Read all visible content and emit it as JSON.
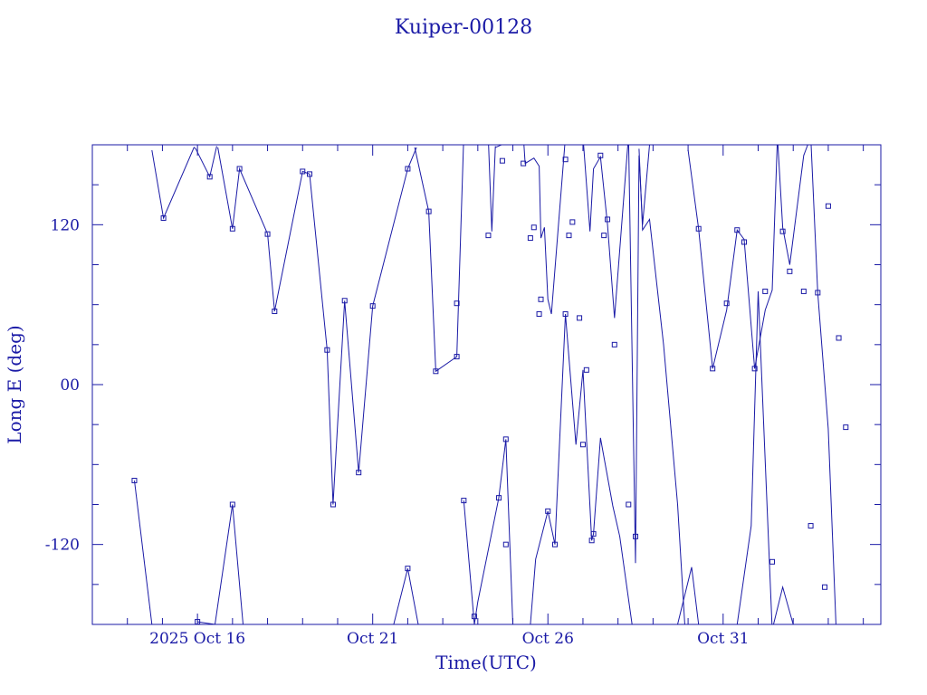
{
  "chart_data": {
    "type": "line",
    "title": "Kuiper-00128",
    "xlabel": "Time(UTC)",
    "ylabel": "Long E (deg)",
    "xlim": [
      -3.0,
      19.5
    ],
    "ylim": [
      -180,
      180
    ],
    "x_ticks": [
      {
        "x": 0,
        "label": "2025 Oct 16"
      },
      {
        "x": 5,
        "label": "Oct 21"
      },
      {
        "x": 10,
        "label": "Oct 26"
      },
      {
        "x": 15,
        "label": "Oct 31"
      }
    ],
    "y_ticks": [
      {
        "y": 120,
        "label": "120"
      },
      {
        "y": 0,
        "label": "00"
      },
      {
        "y": -120,
        "label": "-120"
      }
    ],
    "grid": false,
    "color": "#1a1aa6",
    "note_wrap": "longitude wraps at +/-180 deg; lines break at the wrap",
    "series": [
      {
        "points": [
          [
            -1.3,
            176
          ],
          [
            -0.97,
            125
          ],
          [
            -0.1,
            178
          ],
          [
            -0.05,
            177
          ],
          [
            0.35,
            156
          ],
          [
            0.55,
            179
          ]
        ]
      },
      {
        "points": [
          [
            0.58,
            178
          ],
          [
            1.0,
            117
          ],
          [
            1.2,
            162
          ],
          [
            2.0,
            113
          ],
          [
            2.2,
            55
          ],
          [
            3.0,
            160
          ],
          [
            3.2,
            158
          ],
          [
            3.7,
            26
          ],
          [
            3.87,
            -90
          ],
          [
            4.2,
            63
          ],
          [
            4.6,
            -66
          ],
          [
            5.0,
            59
          ],
          [
            6.0,
            162
          ],
          [
            6.25,
            178
          ]
        ]
      },
      {
        "points": [
          [
            6.2,
            178
          ],
          [
            6.6,
            130
          ],
          [
            6.8,
            10
          ],
          [
            7.4,
            21
          ],
          [
            7.6,
            187
          ],
          [
            8.3,
            185
          ],
          [
            8.4,
            115
          ],
          [
            8.5,
            179
          ]
        ]
      },
      {
        "points": [
          [
            8.5,
            178
          ],
          [
            9.3,
            187
          ],
          [
            9.35,
            166
          ],
          [
            9.6,
            170
          ],
          [
            9.75,
            164
          ],
          [
            9.8,
            110
          ],
          [
            9.9,
            118
          ],
          [
            10.0,
            64
          ],
          [
            10.1,
            53
          ],
          [
            10.5,
            186
          ],
          [
            11.0,
            186
          ],
          [
            11.2,
            115
          ],
          [
            11.3,
            162
          ],
          [
            11.5,
            171
          ],
          [
            11.7,
            120
          ],
          [
            11.9,
            50
          ],
          [
            12.3,
            187
          ],
          [
            12.5,
            -134
          ],
          [
            12.6,
            172
          ],
          [
            12.7,
            120
          ],
          [
            12.9,
            180
          ]
        ]
      },
      {
        "points": [
          [
            12.6,
            177
          ],
          [
            12.7,
            116
          ],
          [
            12.9,
            124
          ],
          [
            13.3,
            30
          ],
          [
            13.7,
            -90
          ],
          [
            13.95,
            -200
          ]
        ]
      },
      {
        "points": [
          [
            14.0,
            176
          ],
          [
            14.3,
            117
          ],
          [
            14.7,
            12
          ],
          [
            15.1,
            56
          ],
          [
            15.4,
            116
          ],
          [
            15.6,
            109
          ],
          [
            15.9,
            12
          ],
          [
            16.2,
            56
          ],
          [
            16.4,
            71
          ],
          [
            16.55,
            186
          ],
          [
            16.7,
            118
          ],
          [
            16.9,
            90
          ],
          [
            17.3,
            172
          ],
          [
            17.5,
            186
          ],
          [
            17.7,
            69
          ],
          [
            18.0,
            -33
          ],
          [
            18.25,
            -200
          ]
        ]
      },
      {
        "points": [
          [
            -1.8,
            -72
          ],
          [
            -1.3,
            -180
          ]
        ]
      },
      {
        "points": [
          [
            0.0,
            -178
          ],
          [
            0.5,
            -180
          ],
          [
            1.0,
            -90
          ],
          [
            1.3,
            -180
          ]
        ]
      },
      {
        "points": [
          [
            5.6,
            -180
          ],
          [
            6.0,
            -138
          ],
          [
            6.3,
            -180
          ]
        ]
      },
      {
        "points": [
          [
            7.6,
            -87
          ],
          [
            7.9,
            -180
          ],
          [
            8.0,
            -163
          ],
          [
            8.6,
            -85
          ],
          [
            8.8,
            -41
          ],
          [
            9.0,
            -180
          ]
        ]
      },
      {
        "points": [
          [
            9.5,
            -180
          ],
          [
            9.65,
            -131
          ],
          [
            10.0,
            -95
          ],
          [
            10.2,
            -120
          ],
          [
            10.5,
            53
          ],
          [
            10.8,
            -45
          ],
          [
            11.0,
            11
          ],
          [
            11.25,
            -117
          ],
          [
            11.3,
            -112
          ],
          [
            11.5,
            -40
          ],
          [
            11.85,
            -91
          ],
          [
            12.05,
            -114
          ],
          [
            12.4,
            -180
          ]
        ]
      },
      {
        "points": [
          [
            13.7,
            -180
          ],
          [
            14.1,
            -137
          ],
          [
            14.3,
            -180
          ]
        ]
      },
      {
        "points": [
          [
            15.4,
            -180
          ],
          [
            15.8,
            -106
          ],
          [
            16.0,
            70
          ],
          [
            16.4,
            -184
          ],
          [
            16.7,
            -152
          ],
          [
            17.0,
            -180
          ]
        ]
      }
    ],
    "markers": [
      [
        -1.8,
        -72
      ],
      [
        -0.97,
        125
      ],
      [
        0.0,
        -178
      ],
      [
        0.35,
        156
      ],
      [
        1.0,
        117
      ],
      [
        1.0,
        -90
      ],
      [
        1.2,
        162
      ],
      [
        2.0,
        113
      ],
      [
        2.2,
        55
      ],
      [
        3.0,
        160
      ],
      [
        3.2,
        158
      ],
      [
        3.7,
        26
      ],
      [
        3.87,
        -90
      ],
      [
        4.2,
        63
      ],
      [
        4.6,
        -66
      ],
      [
        5.0,
        59
      ],
      [
        6.0,
        162
      ],
      [
        6.0,
        -138
      ],
      [
        6.6,
        130
      ],
      [
        6.8,
        10
      ],
      [
        7.4,
        21
      ],
      [
        7.4,
        61
      ],
      [
        7.6,
        -87
      ],
      [
        7.9,
        -174
      ],
      [
        8.3,
        112
      ],
      [
        8.6,
        -85
      ],
      [
        8.7,
        168
      ],
      [
        8.8,
        -41
      ],
      [
        8.8,
        -120
      ],
      [
        9.3,
        166
      ],
      [
        9.5,
        110
      ],
      [
        9.6,
        118
      ],
      [
        9.75,
        53
      ],
      [
        9.8,
        64
      ],
      [
        10.0,
        -95
      ],
      [
        10.2,
        -120
      ],
      [
        10.5,
        53
      ],
      [
        10.5,
        169
      ],
      [
        10.6,
        112
      ],
      [
        10.7,
        122
      ],
      [
        10.9,
        50
      ],
      [
        11.0,
        -45
      ],
      [
        11.1,
        11
      ],
      [
        11.25,
        -117
      ],
      [
        11.3,
        -112
      ],
      [
        11.5,
        172
      ],
      [
        11.6,
        112
      ],
      [
        11.7,
        124
      ],
      [
        11.9,
        30
      ],
      [
        12.3,
        -90
      ],
      [
        12.5,
        -114
      ],
      [
        14.3,
        117
      ],
      [
        14.7,
        12
      ],
      [
        15.1,
        61
      ],
      [
        15.4,
        116
      ],
      [
        15.6,
        107
      ],
      [
        15.9,
        12
      ],
      [
        16.2,
        70
      ],
      [
        16.4,
        -133
      ],
      [
        16.7,
        115
      ],
      [
        16.9,
        85
      ],
      [
        17.3,
        70
      ],
      [
        17.5,
        -106
      ],
      [
        17.7,
        69
      ],
      [
        17.9,
        -152
      ],
      [
        18.0,
        134
      ],
      [
        18.3,
        35
      ],
      [
        18.5,
        -32
      ]
    ]
  }
}
